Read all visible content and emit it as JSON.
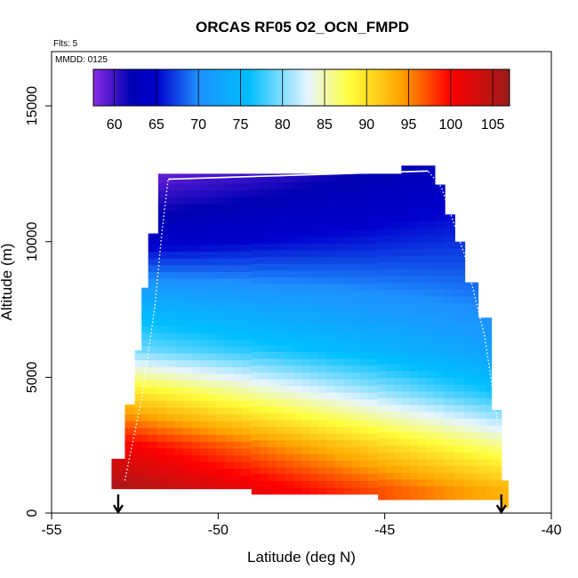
{
  "title": "ORCAS RF05 O2_OCN_FMPD",
  "flights_note": "Flts: 5",
  "mmdd_note": "MMDD: 0125",
  "chart_data": {
    "type": "heatmap",
    "title": "ORCAS RF05 O2_OCN_FMPD",
    "xlabel": "Latitude (deg N)",
    "ylabel": "Altitude (m)",
    "xlim": [
      -55,
      -40
    ],
    "ylim": [
      0,
      17000
    ],
    "x_ticks": [
      -55,
      -50,
      -45,
      -40
    ],
    "x_tick_labels": [
      "-55",
      "-50",
      "-45",
      "-40"
    ],
    "y_ticks": [
      0,
      5000,
      10000,
      15000
    ],
    "y_tick_labels": [
      "0",
      "5000",
      "10000",
      "15000"
    ],
    "colorbar": {
      "range": [
        57.5,
        107
      ],
      "ticks": [
        60,
        65,
        70,
        75,
        80,
        85,
        90,
        95,
        100,
        105
      ],
      "tick_labels": [
        "60",
        "65",
        "70",
        "75",
        "80",
        "85",
        "90",
        "95",
        "100",
        "105"
      ],
      "colors": [
        "#8a2be2",
        "#0000b4",
        "#0000cd",
        "#1e90ff",
        "#00bfff",
        "#e6f5ff",
        "#ffff3c",
        "#ffa500",
        "#ff0000",
        "#9b1c1c"
      ],
      "color_stops": [
        57.5,
        62,
        65,
        70,
        76,
        83,
        88,
        94,
        100,
        107
      ]
    },
    "flight_track": [
      {
        "x": -52.8,
        "y": 1200
      },
      {
        "x": -52.3,
        "y": 4200
      },
      {
        "x": -51.9,
        "y": 7600
      },
      {
        "x": -51.7,
        "y": 10200
      },
      {
        "x": -51.5,
        "y": 12300
      },
      {
        "x": -43.7,
        "y": 12600
      },
      {
        "x": -43.3,
        "y": 12000
      },
      {
        "x": -42.6,
        "y": 9500
      },
      {
        "x": -42.0,
        "y": 6500
      },
      {
        "x": -41.6,
        "y": 3200
      }
    ],
    "arrows_x": [
      -53.0,
      -41.5
    ],
    "field_columns": [
      {
        "x0": -53.2,
        "x1": -52.8,
        "ymin": 900,
        "ymax": 2000
      },
      {
        "x0": -52.8,
        "x1": -52.5,
        "ymin": 900,
        "ymax": 4000
      },
      {
        "x0": -52.5,
        "x1": -52.3,
        "ymin": 900,
        "ymax": 6000
      },
      {
        "x0": -52.3,
        "x1": -52.1,
        "ymin": 900,
        "ymax": 8300
      },
      {
        "x0": -52.1,
        "x1": -51.8,
        "ymin": 900,
        "ymax": 10300
      },
      {
        "x0": -51.8,
        "x1": -49.0,
        "ymin": 900,
        "ymax": 12500
      },
      {
        "x0": -49.0,
        "x1": -45.2,
        "ymin": 700,
        "ymax": 12500
      },
      {
        "x0": -45.2,
        "x1": -44.5,
        "ymin": 500,
        "ymax": 12500
      },
      {
        "x0": -44.5,
        "x1": -43.5,
        "ymin": 500,
        "ymax": 12800
      },
      {
        "x0": -43.5,
        "x1": -43.2,
        "ymin": 500,
        "ymax": 12100
      },
      {
        "x0": -43.2,
        "x1": -42.9,
        "ymin": 500,
        "ymax": 11000
      },
      {
        "x0": -42.9,
        "x1": -42.6,
        "ymin": 500,
        "ymax": 10000
      },
      {
        "x0": -42.6,
        "x1": -42.2,
        "ymin": 500,
        "ymax": 8500
      },
      {
        "x0": -42.2,
        "x1": -41.8,
        "ymin": 500,
        "ymax": 7200
      },
      {
        "x0": -41.8,
        "x1": -41.5,
        "ymin": 500,
        "ymax": 3800
      },
      {
        "x0": -41.5,
        "x1": -41.3,
        "ymin": 200,
        "ymax": 1200
      }
    ],
    "field_model": {
      "description_free": true,
      "value_surface": [
        {
          "altitude": 900,
          "value_at_south": 106,
          "value_at_north": 93
        },
        {
          "altitude": 2500,
          "value_at_south": 101,
          "value_at_north": 86
        },
        {
          "altitude": 4500,
          "value_at_south": 90,
          "value_at_north": 76
        },
        {
          "altitude": 6000,
          "value_at_south": 80,
          "value_at_north": 72
        },
        {
          "altitude": 8000,
          "value_at_south": 73,
          "value_at_north": 69
        },
        {
          "altitude": 10000,
          "value_at_south": 64,
          "value_at_north": 67
        },
        {
          "altitude": 12500,
          "value_at_south": 58,
          "value_at_north": 64
        }
      ]
    }
  }
}
